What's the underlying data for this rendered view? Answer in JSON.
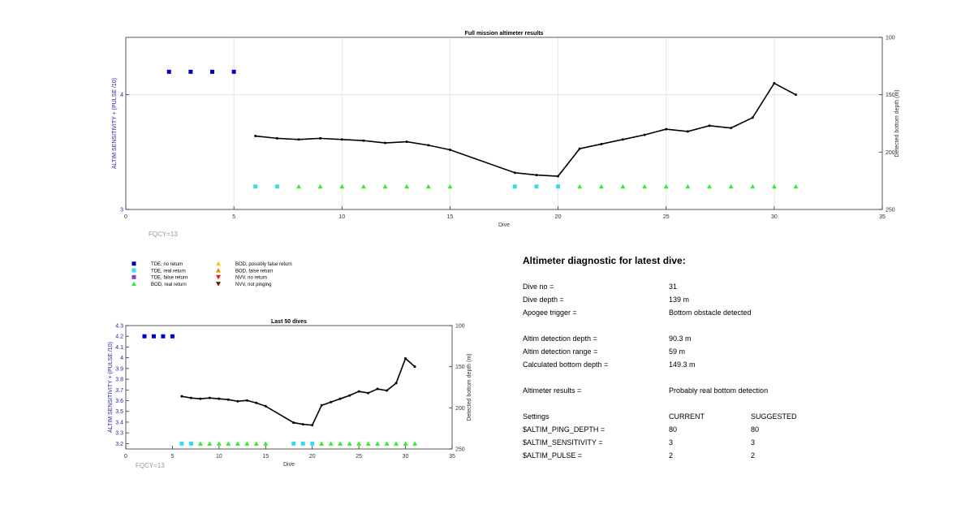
{
  "chart_data": [
    {
      "type": "scatter",
      "title": "Full mission altimeter results",
      "xlabel": "Dive",
      "ylabel": "ALTIM SENSITIVITY + (PULSE /10)",
      "y2label": "Detected bottom depth (m)",
      "xlim": [
        0,
        35
      ],
      "ylim": [
        3,
        4.5
      ],
      "y2lim": [
        100,
        250
      ],
      "y2_reversed": true,
      "xticks": [
        0,
        5,
        10,
        15,
        20,
        25,
        30,
        35
      ],
      "yticks": [
        3,
        4
      ],
      "y2ticks": [
        100,
        150,
        200,
        250
      ],
      "grid": true,
      "annotation": "FQCY=13",
      "series": [
        {
          "name": "TDE, no return",
          "marker": "square",
          "color": "#0000cc",
          "x": [
            2,
            3,
            4,
            5
          ],
          "y": [
            4.2,
            4.2,
            4.2,
            4.2
          ]
        },
        {
          "name": "TDE, real return",
          "marker": "square",
          "color": "#33ddee",
          "x": [
            6,
            7,
            18,
            19,
            20
          ],
          "y": [
            3.2,
            3.2,
            3.2,
            3.2,
            3.2
          ]
        },
        {
          "name": "BOD, real return",
          "marker": "triangle-up",
          "color": "#33ee33",
          "x": [
            8,
            9,
            10,
            11,
            12,
            13,
            14,
            15,
            21,
            22,
            23,
            24,
            25,
            26,
            27,
            28,
            29,
            30,
            31
          ],
          "y": [
            3.2,
            3.2,
            3.2,
            3.2,
            3.2,
            3.2,
            3.2,
            3.2,
            3.2,
            3.2,
            3.2,
            3.2,
            3.2,
            3.2,
            3.2,
            3.2,
            3.2,
            3.2,
            3.2
          ]
        },
        {
          "name": "Detected bottom depth",
          "axis": "right",
          "line": true,
          "color": "#000000",
          "x": [
            6,
            7,
            8,
            9,
            10,
            11,
            12,
            13,
            14,
            15,
            18,
            19,
            20,
            21,
            22,
            23,
            24,
            25,
            26,
            27,
            28,
            29,
            30,
            31
          ],
          "y": [
            186,
            188,
            189,
            188,
            189,
            190,
            192,
            191,
            194,
            198,
            218,
            220,
            221,
            197,
            193,
            189,
            185,
            180,
            182,
            177,
            179,
            170,
            140,
            150
          ]
        }
      ]
    },
    {
      "type": "scatter",
      "title": "Last 50 dives",
      "xlabel": "Dive",
      "ylabel": "ALTIM SENSITIVITY + (PULSE /10)",
      "y2label": "Detected bottom depth (m)",
      "xlim": [
        0,
        35
      ],
      "ylim": [
        3.15,
        4.3
      ],
      "y2lim": [
        100,
        250
      ],
      "y2_reversed": true,
      "xticks": [
        0,
        5,
        10,
        15,
        20,
        25,
        30,
        35
      ],
      "yticks": [
        3.2,
        3.3,
        3.4,
        3.5,
        3.6,
        3.7,
        3.8,
        3.9,
        4,
        4.1,
        4.2,
        4.3
      ],
      "y2ticks": [
        100,
        150,
        200,
        250
      ],
      "grid": false,
      "annotation": "FQCY=13",
      "series": [
        {
          "name": "TDE, no return",
          "marker": "square",
          "color": "#0000cc",
          "x": [
            2,
            3,
            4,
            5
          ],
          "y": [
            4.2,
            4.2,
            4.2,
            4.2
          ]
        },
        {
          "name": "TDE, real return",
          "marker": "square",
          "color": "#33ddee",
          "x": [
            6,
            7,
            18,
            19,
            20
          ],
          "y": [
            3.2,
            3.2,
            3.2,
            3.2,
            3.2
          ]
        },
        {
          "name": "BOD, real return",
          "marker": "triangle-up",
          "color": "#33ee33",
          "x": [
            8,
            9,
            10,
            11,
            12,
            13,
            14,
            15,
            21,
            22,
            23,
            24,
            25,
            26,
            27,
            28,
            29,
            30,
            31
          ],
          "y": [
            3.2,
            3.2,
            3.2,
            3.2,
            3.2,
            3.2,
            3.2,
            3.2,
            3.2,
            3.2,
            3.2,
            3.2,
            3.2,
            3.2,
            3.2,
            3.2,
            3.2,
            3.2,
            3.2
          ]
        },
        {
          "name": "Detected bottom depth",
          "axis": "right",
          "line": true,
          "color": "#000000",
          "x": [
            6,
            7,
            8,
            9,
            10,
            11,
            12,
            13,
            14,
            15,
            18,
            19,
            20,
            21,
            22,
            23,
            24,
            25,
            26,
            27,
            28,
            29,
            30,
            31
          ],
          "y": [
            186,
            188,
            189,
            188,
            189,
            190,
            192,
            191,
            194,
            198,
            218,
            220,
            221,
            197,
            193,
            189,
            185,
            180,
            182,
            177,
            179,
            170,
            140,
            150
          ]
        }
      ]
    }
  ],
  "legend": {
    "position": "between-charts",
    "items": [
      {
        "label": "TDE, no return",
        "marker": "square",
        "color": "#0000cc"
      },
      {
        "label": "TDE, real return",
        "marker": "square",
        "color": "#33ddee"
      },
      {
        "label": "TDE, false return",
        "marker": "square",
        "color": "#7744cc"
      },
      {
        "label": "BOD, real return",
        "marker": "triangle-up",
        "color": "#33ee33"
      },
      {
        "label": "BOD, possibly false return",
        "marker": "triangle-up",
        "color": "#eecc00"
      },
      {
        "label": "BOD, false return",
        "marker": "triangle-up",
        "color": "#ee8800"
      },
      {
        "label": "NVV, no return",
        "marker": "triangle-down",
        "color": "#dd2200"
      },
      {
        "label": "NVV, not pinging",
        "marker": "triangle-down",
        "color": "#771100"
      }
    ]
  },
  "diagnostic": {
    "title": "Altimeter diagnostic for latest dive:",
    "rows": [
      {
        "label": "Dive no =",
        "value": "31"
      },
      {
        "label": "Dive depth =",
        "value": "139 m"
      },
      {
        "label": "Apogee trigger =",
        "value": "Bottom obstacle detected"
      },
      {
        "label": "Altim detection depth =",
        "value": "90.3 m"
      },
      {
        "label": "Altim detection range =",
        "value": "59 m"
      },
      {
        "label": "Calculated bottom depth =",
        "value": "149.3 m"
      },
      {
        "label": "Altimeter results =",
        "value": "Probably real bottom detection"
      }
    ],
    "settings": {
      "header": {
        "label": "Settings",
        "current": "CURRENT",
        "suggested": "SUGGESTED"
      },
      "rows": [
        {
          "label": "$ALTIM_PING_DEPTH =",
          "current": "80",
          "suggested": "80"
        },
        {
          "label": "$ALTIM_SENSITIVITY =",
          "current": "3",
          "suggested": "3"
        },
        {
          "label": "$ALTIM_PULSE =",
          "current": "2",
          "suggested": "2"
        }
      ]
    }
  }
}
